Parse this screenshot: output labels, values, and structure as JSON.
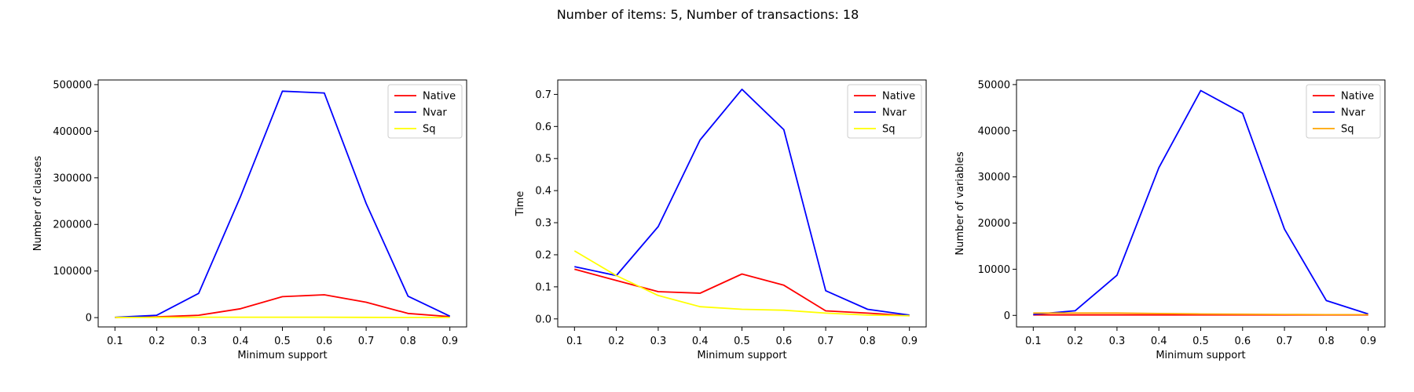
{
  "figure": {
    "suptitle": "Number of items: 5, Number of transactions: 18"
  },
  "chart_data": [
    {
      "type": "line",
      "xlabel": "Minimum support",
      "ylabel": "Number of clauses",
      "x": [
        0.1,
        0.2,
        0.3,
        0.4,
        0.5,
        0.6,
        0.7,
        0.8,
        0.9
      ],
      "xticks": [
        "0.1",
        "0.2",
        "0.3",
        "0.4",
        "0.5",
        "0.6",
        "0.7",
        "0.8",
        "0.9"
      ],
      "xlim": [
        0.06,
        0.94
      ],
      "ylim": [
        -20000,
        510000
      ],
      "yticks": [
        0,
        100000,
        200000,
        300000,
        400000,
        500000
      ],
      "yticklabels": [
        "0",
        "100000",
        "200000",
        "300000",
        "400000",
        "500000"
      ],
      "legend": "top-right",
      "grid": false,
      "series": [
        {
          "name": "Native",
          "color": "#ff0000",
          "values": [
            400,
            1500,
            5000,
            19000,
            45000,
            49000,
            33000,
            9000,
            2000
          ]
        },
        {
          "name": "Nvar",
          "color": "#0000ff",
          "values": [
            500,
            5000,
            52000,
            260000,
            486000,
            482000,
            245000,
            46000,
            3000
          ]
        },
        {
          "name": "Sq",
          "color": "#ffff00",
          "values": [
            300,
            500,
            800,
            900,
            900,
            800,
            600,
            400,
            300
          ]
        }
      ]
    },
    {
      "type": "line",
      "xlabel": "Minimum support",
      "ylabel": "Time",
      "x": [
        0.1,
        0.2,
        0.3,
        0.4,
        0.5,
        0.6,
        0.7,
        0.8,
        0.9
      ],
      "xticks": [
        "0.1",
        "0.2",
        "0.3",
        "0.4",
        "0.5",
        "0.6",
        "0.7",
        "0.8",
        "0.9"
      ],
      "xlim": [
        0.06,
        0.94
      ],
      "ylim": [
        -0.025,
        0.745
      ],
      "yticks": [
        0.0,
        0.1,
        0.2,
        0.3,
        0.4,
        0.5,
        0.6,
        0.7
      ],
      "yticklabels": [
        "0.0",
        "0.1",
        "0.2",
        "0.3",
        "0.4",
        "0.5",
        "0.6",
        "0.7"
      ],
      "legend": "top-right",
      "grid": false,
      "series": [
        {
          "name": "Native",
          "color": "#ff0000",
          "values": [
            0.155,
            0.12,
            0.085,
            0.08,
            0.14,
            0.105,
            0.025,
            0.018,
            0.01
          ]
        },
        {
          "name": "Nvar",
          "color": "#0000ff",
          "values": [
            0.163,
            0.135,
            0.288,
            0.558,
            0.716,
            0.59,
            0.088,
            0.03,
            0.012
          ]
        },
        {
          "name": "Sq",
          "color": "#ffff00",
          "values": [
            0.212,
            0.135,
            0.073,
            0.038,
            0.03,
            0.027,
            0.018,
            0.012,
            0.01
          ]
        }
      ]
    },
    {
      "type": "line",
      "xlabel": "Minimum support",
      "ylabel": "Number of variables",
      "x": [
        0.1,
        0.2,
        0.3,
        0.4,
        0.5,
        0.6,
        0.7,
        0.8,
        0.9
      ],
      "xticks": [
        "0.1",
        "0.2",
        "0.3",
        "0.4",
        "0.5",
        "0.6",
        "0.7",
        "0.8",
        "0.9"
      ],
      "xlim": [
        0.06,
        0.94
      ],
      "ylim": [
        -2500,
        51000
      ],
      "yticks": [
        0,
        10000,
        20000,
        30000,
        40000,
        50000
      ],
      "yticklabels": [
        "0",
        "10000",
        "20000",
        "30000",
        "40000",
        "50000"
      ],
      "legend": "top-right",
      "grid": false,
      "series": [
        {
          "name": "Native",
          "color": "#ff0000",
          "values": [
            100,
            100,
            100,
            100,
            100,
            100,
            100,
            100,
            100
          ]
        },
        {
          "name": "Nvar",
          "color": "#0000ff",
          "values": [
            200,
            1000,
            8700,
            32000,
            48700,
            43800,
            18700,
            3200,
            300
          ]
        },
        {
          "name": "Sq",
          "color": "#ffa500",
          "values": [
            500,
            500,
            500,
            400,
            300,
            250,
            200,
            150,
            150
          ]
        }
      ]
    }
  ]
}
